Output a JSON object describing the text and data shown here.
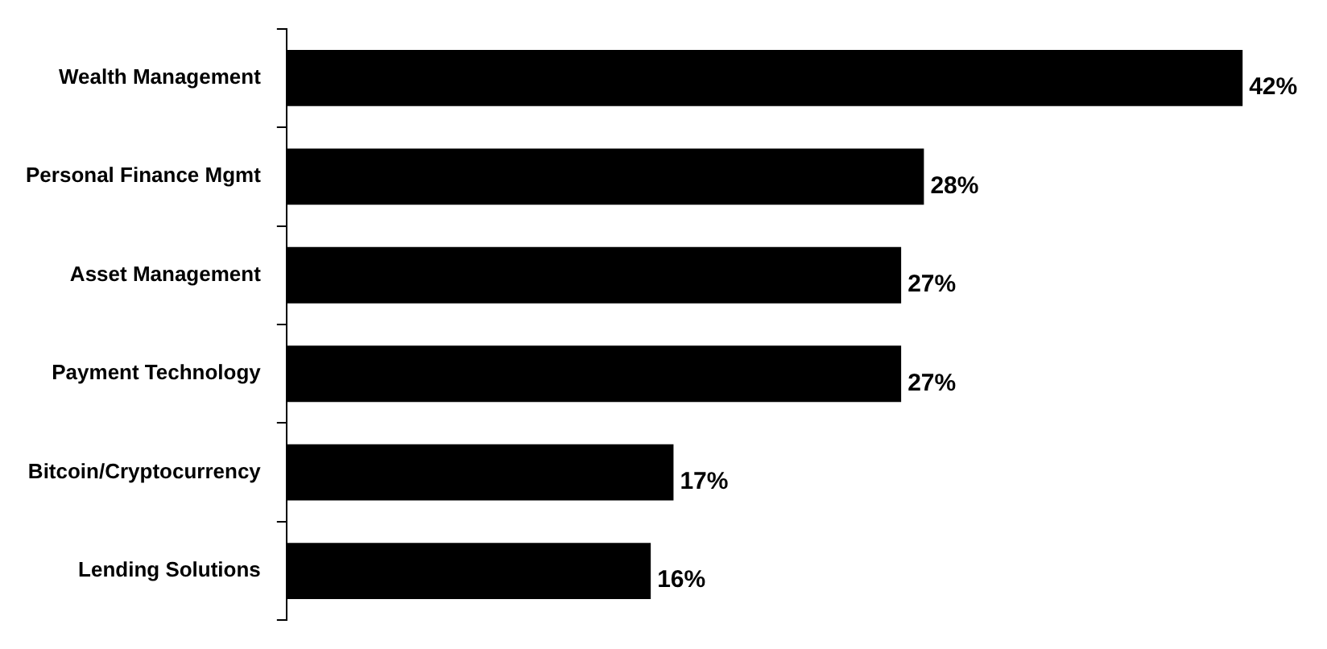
{
  "chart_data": {
    "type": "bar",
    "orientation": "horizontal",
    "categories": [
      "Wealth Management",
      "Personal Finance Mgmt",
      "Asset Management",
      "Payment Technology",
      "Bitcoin/Cryptocurrency",
      "Lending Solutions"
    ],
    "values": [
      42,
      28,
      27,
      27,
      17,
      16
    ],
    "color": "#000000",
    "value_labels": [
      "42%",
      "28%",
      "27%",
      "27%",
      "17%",
      "16%"
    ]
  }
}
